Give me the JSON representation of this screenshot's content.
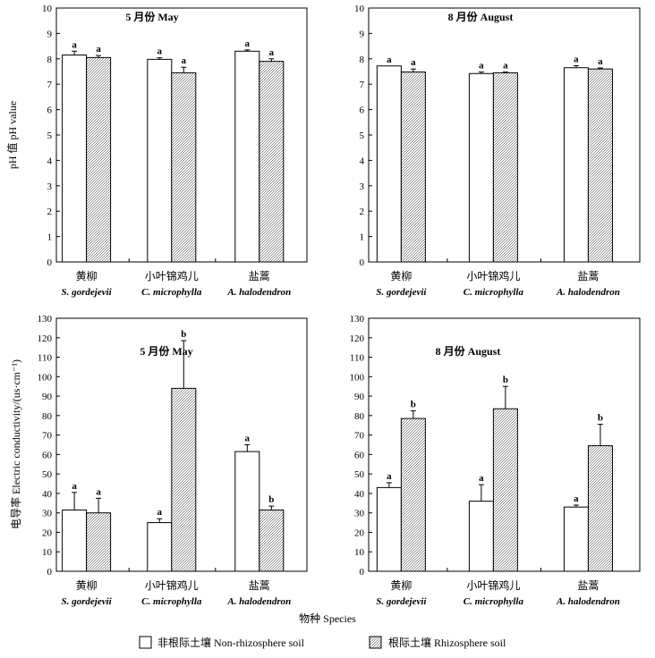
{
  "colors": {
    "non_rhizosphere": "#ffffff",
    "rhizosphere_pattern": "#9a9a9a",
    "axis": "#000000"
  },
  "chart_data": [
    {
      "type": "bar",
      "title": "5 月份  May",
      "categories_cn": [
        "黄柳",
        "小叶锦鸡儿",
        "盐蒿"
      ],
      "categories_sci": [
        "S. gordejevii",
        "C. microphylla",
        "A. halodendron"
      ],
      "yticks": [
        0,
        1,
        2,
        3,
        4,
        5,
        6,
        7,
        8,
        9,
        10
      ],
      "ylim": [
        0,
        10
      ],
      "ylabel": "pH 值  pH value",
      "series": [
        {
          "name": "非根际土壤  Non-rhizosphere soil",
          "values": [
            8.15,
            7.98,
            8.3
          ],
          "errors": [
            0.15,
            0.06,
            0.05
          ],
          "letters": [
            "a",
            "a",
            "a"
          ]
        },
        {
          "name": "根际土壤  Rhizosphere soil",
          "values": [
            8.05,
            7.45,
            7.9
          ],
          "errors": [
            0.08,
            0.22,
            0.1
          ],
          "letters": [
            "a",
            "a",
            "a"
          ]
        }
      ]
    },
    {
      "type": "bar",
      "title": "8 月份  August",
      "categories_cn": [
        "黄柳",
        "小叶锦鸡儿",
        "盐蒿"
      ],
      "categories_sci": [
        "S. gordejevii",
        "C. microphylla",
        "A. halodendron"
      ],
      "yticks": [
        0,
        1,
        2,
        3,
        4,
        5,
        6,
        7,
        8,
        9,
        10
      ],
      "ylim": [
        0,
        10
      ],
      "ylabel": "",
      "series": [
        {
          "name": "非根际土壤  Non-rhizosphere soil",
          "values": [
            7.72,
            7.42,
            7.65
          ],
          "errors": [
            0.0,
            0.06,
            0.08
          ],
          "letters": [
            "a",
            "a",
            "a"
          ]
        },
        {
          "name": "根际土壤  Rhizosphere soil",
          "values": [
            7.48,
            7.45,
            7.6
          ],
          "errors": [
            0.12,
            0.03,
            0.04
          ],
          "letters": [
            "a",
            "a",
            "a"
          ]
        }
      ]
    },
    {
      "type": "bar",
      "title": "5 月份  May",
      "categories_cn": [
        "黄柳",
        "小叶锦鸡儿",
        "盐蒿"
      ],
      "categories_sci": [
        "S. gordejevii",
        "C. microphylla",
        "A. halodendron"
      ],
      "yticks": [
        0,
        10,
        20,
        30,
        40,
        50,
        60,
        70,
        80,
        90,
        100,
        110,
        120,
        130
      ],
      "ylim": [
        0,
        130
      ],
      "ylabel": "电导率   Electric conductivity/(us·cm⁻¹)",
      "series": [
        {
          "name": "非根际土壤  Non-rhizosphere soil",
          "values": [
            31.5,
            25.0,
            61.5
          ],
          "errors": [
            9.0,
            2.0,
            3.5
          ],
          "letters": [
            "a",
            "a",
            "a"
          ]
        },
        {
          "name": "根际土壤  Rhizosphere soil",
          "values": [
            30.0,
            94.0,
            31.5
          ],
          "errors": [
            7.5,
            24.5,
            2.0
          ],
          "letters": [
            "a",
            "b",
            "b"
          ]
        }
      ]
    },
    {
      "type": "bar",
      "title": "8 月份  August",
      "categories_cn": [
        "黄柳",
        "小叶锦鸡儿",
        "盐蒿"
      ],
      "categories_sci": [
        "S. gordejevii",
        "C. microphylla",
        "A. halodendron"
      ],
      "yticks": [
        0,
        10,
        20,
        30,
        40,
        50,
        60,
        70,
        80,
        90,
        100,
        110,
        120,
        130
      ],
      "ylim": [
        0,
        130
      ],
      "ylabel": "",
      "series": [
        {
          "name": "非根际土壤  Non-rhizosphere soil",
          "values": [
            43.0,
            36.0,
            33.0
          ],
          "errors": [
            2.5,
            8.5,
            1.0
          ],
          "letters": [
            "a",
            "a",
            "a"
          ]
        },
        {
          "name": "根际土壤  Rhizosphere soil",
          "values": [
            78.5,
            83.5,
            64.5
          ],
          "errors": [
            4.0,
            11.5,
            11.0
          ],
          "letters": [
            "b",
            "b",
            "b"
          ]
        }
      ]
    }
  ],
  "shared": {
    "xlabel": "物种   Species",
    "legend": [
      {
        "label": "非根际土壤   Non-rhizosphere soil"
      },
      {
        "label": "根际土壤   Rhizosphere soil"
      }
    ]
  }
}
